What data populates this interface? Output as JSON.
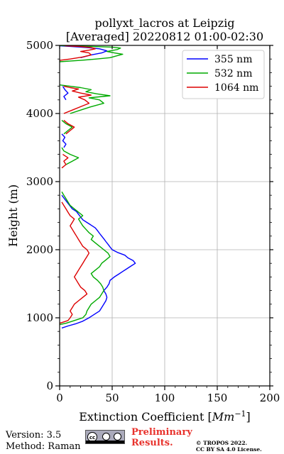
{
  "chart_data": {
    "type": "line",
    "title_line1": "pollyxt_lacros at Leipzig",
    "title_line2": "[Averaged] 20220812 01:00-02:30",
    "xlabel_prefix": "Extinction Coefficient [",
    "xlabel_unit": "Mm",
    "xlabel_exp": "−1",
    "xlabel_suffix": "]",
    "ylabel": "Height (m)",
    "xlim": [
      0,
      200
    ],
    "ylim": [
      0,
      5000
    ],
    "xticks": [
      "0",
      "50",
      "100",
      "150",
      "200"
    ],
    "yticks": [
      "0",
      "1000",
      "2000",
      "3000",
      "4000",
      "5000"
    ],
    "grid": true,
    "legend_position": "top-right",
    "series": [
      {
        "name": "355 nm",
        "color": "#0000ff",
        "segments": [
          {
            "x": [
              2,
              8,
              15,
              22,
              28,
              33,
              38,
              40,
              42,
              44,
              45,
              44,
              42,
              45,
              47,
              48,
              52,
              56,
              60,
              64,
              68,
              72,
              70,
              65,
              62,
              55,
              50,
              48,
              46,
              44,
              42,
              40,
              38,
              36,
              34,
              30,
              26,
              22,
              20,
              18,
              16,
              12,
              10,
              8,
              6,
              4,
              2
            ],
            "y": [
              850,
              880,
              910,
              950,
              1000,
              1050,
              1100,
              1150,
              1200,
              1250,
              1300,
              1350,
              1400,
              1450,
              1500,
              1550,
              1600,
              1640,
              1680,
              1720,
              1760,
              1800,
              1840,
              1880,
              1920,
              1960,
              2000,
              2040,
              2080,
              2120,
              2160,
              2200,
              2240,
              2280,
              2320,
              2360,
              2400,
              2440,
              2480,
              2520,
              2560,
              2600,
              2640,
              2680,
              2720,
              2760,
              2800
            ]
          },
          {
            "x": [
              4,
              6,
              3,
              5,
              2
            ],
            "y": [
              3500,
              3550,
              3600,
              3650,
              3700
            ]
          },
          {
            "x": [
              6,
              4,
              8,
              5,
              3
            ],
            "y": [
              4200,
              4250,
              4300,
              4350,
              4400
            ]
          },
          {
            "x": [
              20,
              30,
              40,
              45,
              38,
              25,
              10,
              0
            ],
            "y": [
              4820,
              4860,
              4890,
              4920,
              4950,
              4970,
              4985,
              4995
            ]
          }
        ]
      },
      {
        "name": "532 nm",
        "color": "#00aa00",
        "segments": [
          {
            "x": [
              0,
              6,
              12,
              18,
              22,
              25,
              26,
              28,
              30,
              34,
              38,
              40,
              42,
              41,
              39,
              36,
              32,
              30,
              34,
              38,
              40,
              44,
              48,
              46,
              42,
              38,
              34,
              30,
              32,
              28,
              25,
              22,
              20,
              18,
              22,
              18,
              14,
              10,
              8,
              6,
              4,
              2
            ],
            "y": [
              900,
              920,
              950,
              980,
              1000,
              1050,
              1100,
              1150,
              1200,
              1250,
              1300,
              1350,
              1400,
              1450,
              1500,
              1550,
              1600,
              1650,
              1700,
              1750,
              1800,
              1850,
              1900,
              1950,
              2000,
              2050,
              2100,
              2150,
              2200,
              2250,
              2300,
              2350,
              2400,
              2450,
              2500,
              2550,
              2600,
              2650,
              2700,
              2750,
              2800,
              2850
            ]
          },
          {
            "x": [
              6,
              12,
              18,
              10,
              4,
              2
            ],
            "y": [
              3250,
              3300,
              3350,
              3400,
              3450,
              3500
            ]
          },
          {
            "x": [
              4,
              8,
              12,
              6,
              2
            ],
            "y": [
              3700,
              3750,
              3800,
              3850,
              3900
            ]
          },
          {
            "x": [
              10,
              20,
              30,
              42,
              38,
              28,
              48,
              35,
              25,
              30,
              20,
              10,
              0
            ],
            "y": [
              4000,
              4050,
              4100,
              4150,
              4200,
              4230,
              4260,
              4290,
              4320,
              4350,
              4380,
              4400,
              4420
            ]
          },
          {
            "x": [
              0,
              20,
              35,
              48,
              55,
              60,
              52,
              45,
              55,
              58,
              50,
              30,
              10,
              0
            ],
            "y": [
              4760,
              4780,
              4800,
              4820,
              4850,
              4870,
              4890,
              4910,
              4940,
              4960,
              4975,
              4985,
              4992,
              4998
            ]
          }
        ]
      },
      {
        "name": "1064 nm",
        "color": "#dd0000",
        "segments": [
          {
            "x": [
              0,
              4,
              8,
              10,
              12,
              10,
              12,
              14,
              18,
              22,
              26,
              24,
              20,
              18,
              16,
              14,
              16,
              18,
              20,
              22,
              24,
              26,
              28,
              26,
              22,
              20,
              18,
              16,
              14,
              12,
              10,
              12,
              14,
              10,
              8,
              6,
              4,
              2
            ],
            "y": [
              920,
              940,
              960,
              1000,
              1050,
              1100,
              1150,
              1200,
              1250,
              1300,
              1350,
              1400,
              1450,
              1500,
              1550,
              1600,
              1650,
              1700,
              1750,
              1800,
              1850,
              1900,
              1950,
              2000,
              2050,
              2100,
              2150,
              2200,
              2250,
              2300,
              2350,
              2400,
              2450,
              2500,
              2550,
              2600,
              2650,
              2700
            ]
          },
          {
            "x": [
              2,
              6,
              4,
              8,
              3
            ],
            "y": [
              3200,
              3250,
              3300,
              3350,
              3400
            ]
          },
          {
            "x": [
              6,
              10,
              14,
              8,
              4
            ],
            "y": [
              3700,
              3750,
              3800,
              3850,
              3900
            ]
          },
          {
            "x": [
              4,
              12,
              20,
              28,
              24,
              18,
              30,
              20,
              12,
              18,
              10,
              4
            ],
            "y": [
              4000,
              4050,
              4100,
              4150,
              4200,
              4240,
              4270,
              4300,
              4330,
              4360,
              4380,
              4400
            ]
          },
          {
            "x": [
              0,
              10,
              22,
              30,
              28,
              20,
              28,
              34,
              30,
              18,
              5
            ],
            "y": [
              4780,
              4800,
              4830,
              4860,
              4890,
              4910,
              4930,
              4950,
              4970,
              4985,
              4995
            ]
          }
        ]
      }
    ]
  },
  "footer": {
    "version": "Version: 3.5",
    "method": "Method: Raman",
    "preliminary_line1": "Preliminary",
    "preliminary_line2": "Results.",
    "copyright_line1": "© TROPOS 2022.",
    "copyright_line2": "CC BY SA 4.0 License.",
    "license_icon": "cc-by-sa-icon",
    "license_badge_text": "cc"
  }
}
